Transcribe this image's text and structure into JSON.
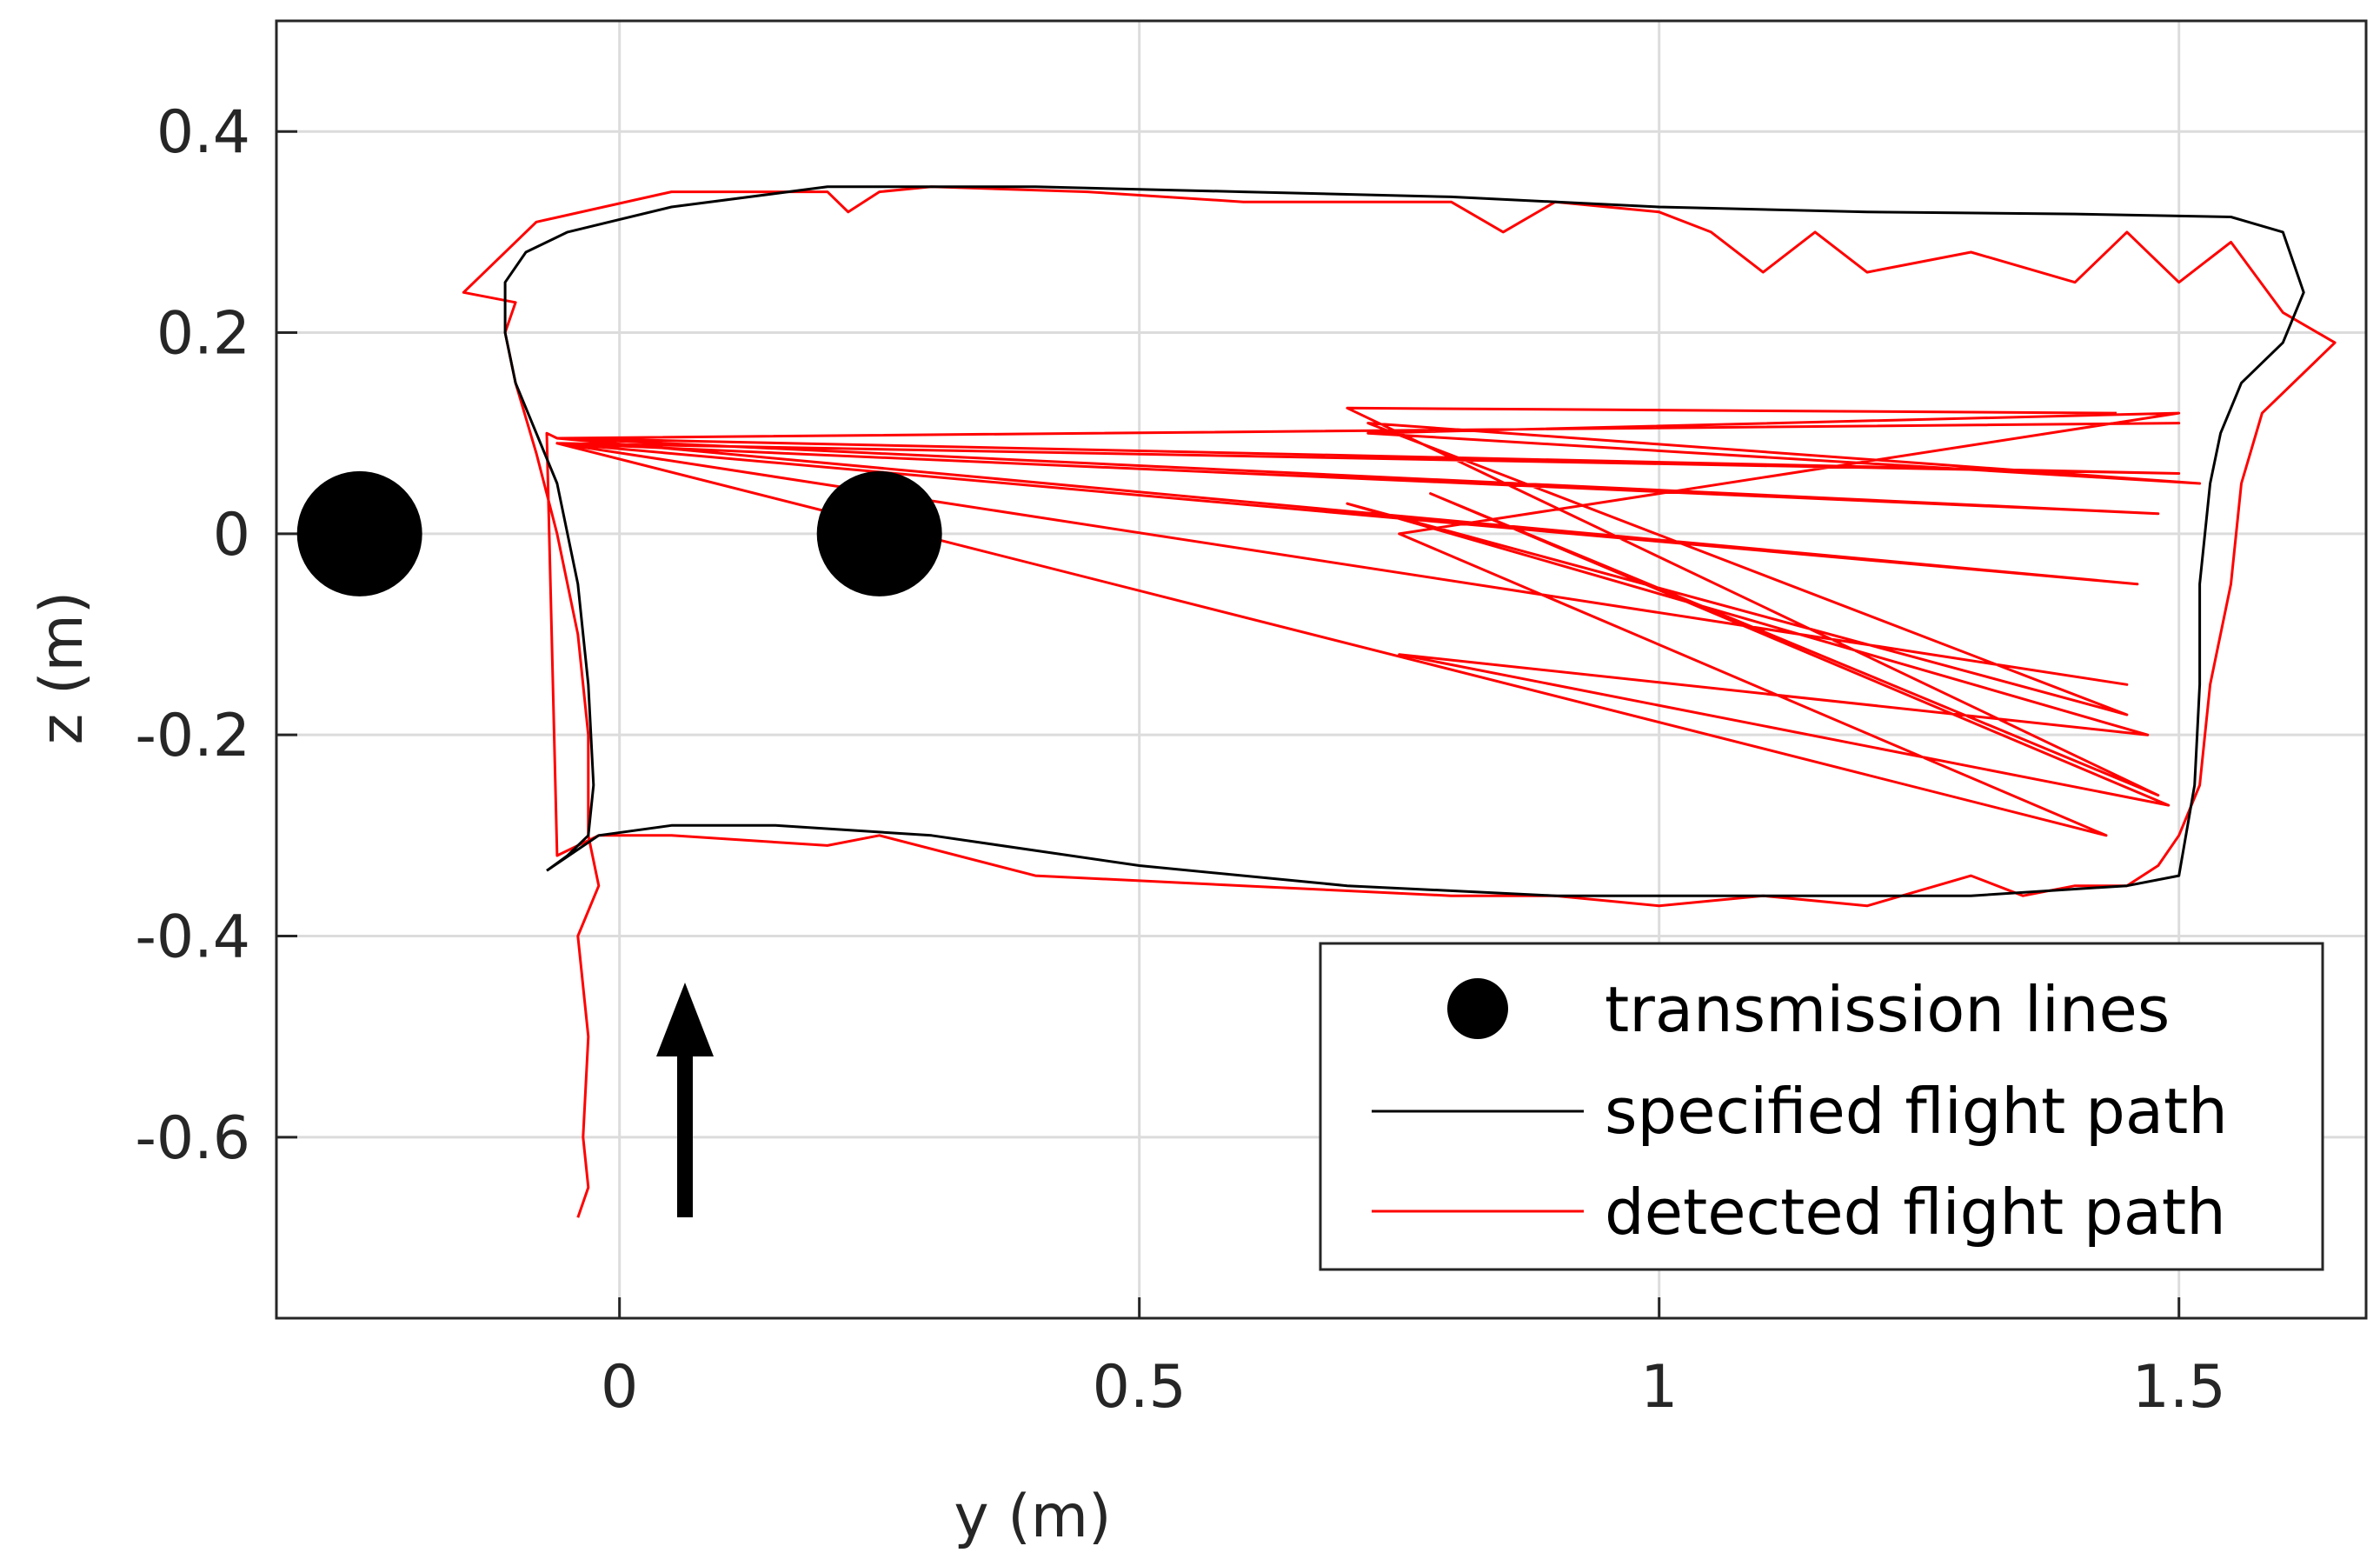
{
  "chart_data": {
    "type": "line",
    "title": "",
    "xlabel": "y (m)",
    "ylabel": "z (m)",
    "xlim": [
      -0.33,
      1.68
    ],
    "ylim": [
      -0.78,
      0.51
    ],
    "grid": true,
    "xticks": [
      0,
      0.5,
      1,
      1.5
    ],
    "xtick_labels": [
      "0",
      "0.5",
      "1",
      "1.5"
    ],
    "yticks": [
      0.4,
      0.2,
      0,
      -0.2,
      -0.4,
      -0.6
    ],
    "ytick_labels": [
      "0.4",
      "0.2",
      "0",
      "-0.2",
      "-0.4",
      "-0.6"
    ],
    "legend_position": "bottom-right",
    "legend": [
      {
        "label": "transmission lines",
        "kind": "marker"
      },
      {
        "label": "specified flight path",
        "kind": "line"
      },
      {
        "label": "detected flight path",
        "kind": "line"
      }
    ],
    "colors": {
      "specified": "#000000",
      "detected": "#ff0000",
      "lines": "#000000"
    },
    "series": [
      {
        "name": "transmission lines",
        "kind": "scatter",
        "x": [
          -0.25,
          0.25
        ],
        "y": [
          0,
          0
        ]
      },
      {
        "name": "specified flight path",
        "kind": "line",
        "x": [
          -0.07,
          -0.05,
          -0.03,
          -0.025,
          -0.03,
          -0.04,
          -0.06,
          -0.08,
          -0.1,
          -0.11,
          -0.11,
          -0.09,
          -0.05,
          0.05,
          0.2,
          0.4,
          0.6,
          0.8,
          1.0,
          1.2,
          1.4,
          1.55,
          1.6,
          1.62,
          1.6,
          1.56,
          1.54,
          1.53,
          1.525,
          1.52,
          1.52,
          1.515,
          1.5,
          1.45,
          1.3,
          1.1,
          0.9,
          0.7,
          0.5,
          0.3,
          0.15,
          0.05,
          -0.02,
          -0.07
        ],
        "y": [
          -0.335,
          -0.32,
          -0.3,
          -0.25,
          -0.15,
          -0.05,
          0.05,
          0.1,
          0.15,
          0.2,
          0.25,
          0.28,
          0.3,
          0.325,
          0.345,
          0.345,
          0.34,
          0.335,
          0.325,
          0.32,
          0.318,
          0.315,
          0.3,
          0.24,
          0.19,
          0.15,
          0.1,
          0.05,
          0.0,
          -0.05,
          -0.15,
          -0.25,
          -0.34,
          -0.35,
          -0.36,
          -0.36,
          -0.36,
          -0.35,
          -0.33,
          -0.3,
          -0.29,
          -0.29,
          -0.3,
          -0.335
        ]
      },
      {
        "name": "detected flight path",
        "kind": "line",
        "x": [
          -0.04,
          -0.03,
          -0.035,
          -0.03,
          -0.04,
          -0.02,
          -0.03,
          -0.03,
          -0.04,
          -0.06,
          -0.08,
          -0.1,
          -0.11,
          -0.1,
          -0.15,
          -0.08,
          0.05,
          0.2,
          0.22,
          0.25,
          0.3,
          0.45,
          0.6,
          0.8,
          0.85,
          0.9,
          1.0,
          1.05,
          1.1,
          1.15,
          1.2,
          1.3,
          1.4,
          1.45,
          1.5,
          1.55,
          1.6,
          1.65,
          1.58,
          1.56,
          1.55,
          1.53,
          1.52,
          1.5,
          1.48,
          1.45,
          1.4,
          1.35,
          1.3,
          1.2,
          1.1,
          1.0,
          0.9,
          0.8,
          0.6,
          0.4,
          0.25,
          0.2,
          0.05,
          -0.02,
          -0.06,
          -0.07,
          -0.06,
          1.5,
          -0.06,
          1.5,
          -0.06,
          1.48,
          -0.06,
          1.46,
          -0.06,
          1.45,
          -0.06,
          1.43,
          0.75,
          1.5,
          0.72,
          1.52,
          0.72,
          1.45,
          0.7,
          1.47,
          0.75,
          1.49,
          0.78,
          1.48,
          0.7,
          1.44
        ],
        "y": [
          -0.68,
          -0.65,
          -0.6,
          -0.5,
          -0.4,
          -0.35,
          -0.3,
          -0.2,
          -0.1,
          0.0,
          0.08,
          0.15,
          0.2,
          0.23,
          0.24,
          0.31,
          0.34,
          0.34,
          0.32,
          0.34,
          0.345,
          0.34,
          0.33,
          0.33,
          0.3,
          0.33,
          0.32,
          0.3,
          0.26,
          0.3,
          0.26,
          0.28,
          0.25,
          0.3,
          0.25,
          0.29,
          0.22,
          0.19,
          0.12,
          0.05,
          -0.05,
          -0.15,
          -0.25,
          -0.3,
          -0.33,
          -0.35,
          -0.35,
          -0.36,
          -0.34,
          -0.37,
          -0.36,
          -0.37,
          -0.36,
          -0.36,
          -0.35,
          -0.34,
          -0.3,
          -0.31,
          -0.3,
          -0.3,
          -0.32,
          0.1,
          0.095,
          0.11,
          0.095,
          0.06,
          0.09,
          0.02,
          0.095,
          -0.05,
          0.09,
          -0.15,
          0.09,
          -0.3,
          0.0,
          0.12,
          0.1,
          0.05,
          0.11,
          -0.18,
          0.03,
          -0.2,
          -0.12,
          -0.27,
          0.04,
          -0.26,
          0.125,
          0.12
        ]
      }
    ]
  }
}
